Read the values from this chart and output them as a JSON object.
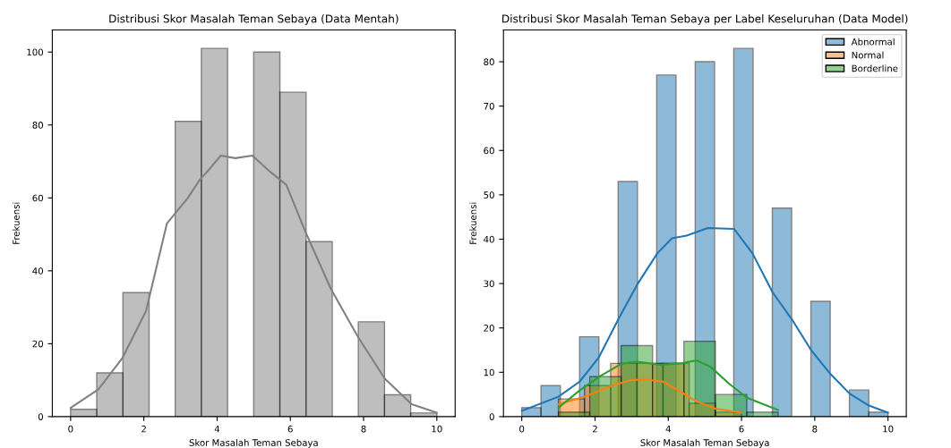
{
  "chart_data": [
    {
      "type": "histogram",
      "title": "Distribusi Skor Masalah Teman Sebaya (Data Mentah)",
      "xlabel": "Skor Masalah Teman Sebaya",
      "ylabel": "Frekuensi",
      "xlim": [
        -0.5,
        10.5
      ],
      "ylim": [
        0,
        106.05
      ],
      "xticks": [
        0,
        2,
        4,
        6,
        8,
        10
      ],
      "yticks": [
        0,
        20,
        40,
        60,
        80,
        100
      ],
      "grid": false,
      "legend": false,
      "series": [
        {
          "type": "histogram",
          "color": "#bfbfbf",
          "bins": [
            0,
            0.714,
            1.429,
            2.143,
            2.857,
            3.571,
            4.286,
            5,
            5.714,
            6.429,
            7.143,
            7.857,
            8.571,
            9.286,
            10
          ],
          "values": [
            2,
            12,
            34,
            0,
            81,
            101,
            0,
            100,
            89,
            48,
            0,
            26,
            6,
            1
          ]
        },
        {
          "type": "line",
          "color": "#808080",
          "x": [
            0,
            0.76,
            1.41,
            2.06,
            2.63,
            3.2,
            3.53,
            3.8,
            4.1,
            4.5,
            4.96,
            5.48,
            5.89,
            6.42,
            7.11,
            7.85,
            8.58,
            9.31,
            10
          ],
          "values": [
            2.4,
            7.5,
            16,
            29,
            53,
            60,
            65,
            68,
            71.6,
            70.9,
            71.6,
            66.9,
            63.6,
            50.5,
            35,
            21.8,
            10.4,
            3.4,
            1.1
          ]
        }
      ]
    },
    {
      "type": "histogram",
      "title": "Distribusi Skor Masalah Teman Sebaya per Label Keseluruhan (Data Model)",
      "xlabel": "Skor Masalah Teman Sebaya",
      "ylabel": "Frekuensi",
      "xlim": [
        -0.5,
        10.5
      ],
      "ylim": [
        0,
        87.15
      ],
      "xticks": [
        0,
        2,
        4,
        6,
        8,
        10
      ],
      "yticks": [
        0,
        10,
        20,
        30,
        40,
        50,
        60,
        70,
        80
      ],
      "grid": false,
      "legend": "top right",
      "series": [
        {
          "type": "histogram",
          "name": "Abnormal",
          "color": "#8fbbd9",
          "bins": [
            0,
            0.526,
            1.053,
            1.579,
            2.105,
            2.632,
            3.158,
            3.684,
            4.211,
            4.737,
            5.263,
            5.789,
            6.316,
            6.842,
            7.368,
            7.895,
            8.421,
            8.947,
            9.474,
            10
          ],
          "values": [
            2,
            7,
            0,
            18,
            0,
            53,
            0,
            77,
            0,
            80,
            0,
            83,
            0,
            47,
            0,
            26,
            0,
            6,
            1
          ]
        },
        {
          "type": "histogram",
          "name": "Normal",
          "color": "#ffbf86",
          "bins": [
            1,
            1.714,
            2.429,
            3.143,
            3.857,
            4.571,
            5.286,
            6
          ],
          "values": [
            4,
            7,
            12,
            12,
            12,
            3,
            1
          ]
        },
        {
          "type": "histogram",
          "name": "Borderline",
          "color": "#95cf95",
          "bins": [
            1,
            1.857,
            2.714,
            3.571,
            4.429,
            5.286,
            6.143,
            7
          ],
          "values": [
            1,
            9,
            16,
            12,
            17,
            5,
            1
          ]
        },
        {
          "type": "line",
          "color": "#1f77b4",
          "x": [
            0,
            1.0,
            1.58,
            2.1,
            2.64,
            3.17,
            3.7,
            4.1,
            4.5,
            5.08,
            5.8,
            6.3,
            6.85,
            7.37,
            7.9,
            8.43,
            8.95,
            9.48,
            10
          ],
          "values": [
            1.3,
            4.5,
            7.9,
            13.3,
            22,
            30,
            36.8,
            40.2,
            40.8,
            42.5,
            42.3,
            36.8,
            28,
            22,
            15,
            9.6,
            5.2,
            2.5,
            0.9
          ]
        },
        {
          "type": "line",
          "color": "#ff7f0e",
          "x": [
            1,
            1.72,
            2.43,
            2.96,
            3.37,
            3.86,
            4.35,
            4.76,
            5.29,
            6
          ],
          "values": [
            2.8,
            4.5,
            6.9,
            8.2,
            8.4,
            7.9,
            5.5,
            3.5,
            1.8,
            0.9
          ]
        },
        {
          "type": "line",
          "color": "#2ca02c",
          "x": [
            1,
            1.58,
            2.15,
            2.72,
            3.13,
            3.78,
            4.35,
            4.76,
            5.16,
            5.65,
            6.16,
            7
          ],
          "values": [
            2,
            5.9,
            9.2,
            11.9,
            12.4,
            11.7,
            12,
            12.7,
            11.2,
            7.5,
            4.2,
            1.5
          ]
        }
      ]
    }
  ]
}
